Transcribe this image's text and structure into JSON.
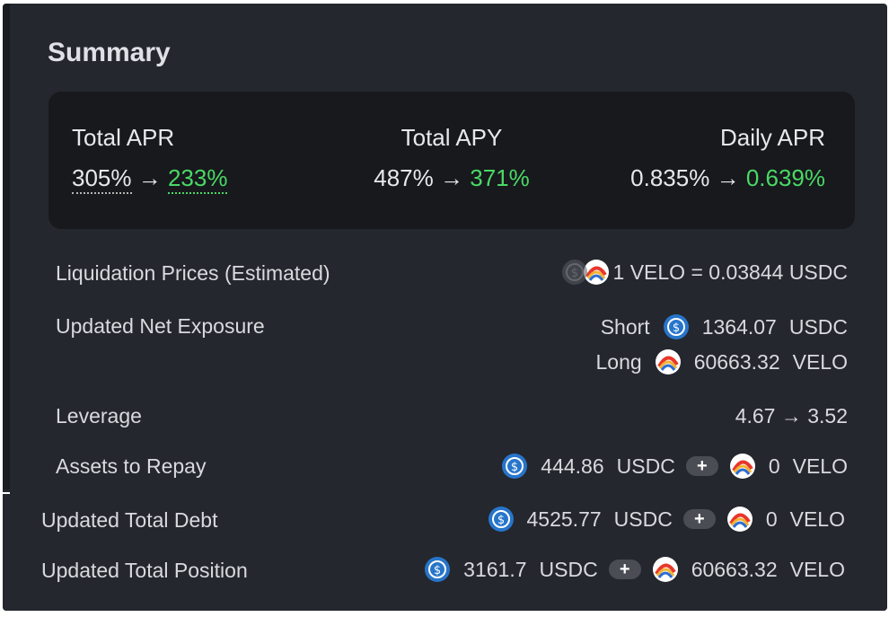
{
  "title": "Summary",
  "metrics": {
    "total_apr": {
      "label": "Total APR",
      "from": "305%",
      "to": "233%"
    },
    "total_apy": {
      "label": "Total APY",
      "from": "487%",
      "to": "371%"
    },
    "daily_apr": {
      "label": "Daily APR",
      "from": "0.835%",
      "to": "0.639%"
    },
    "arrow": "→"
  },
  "liquidation": {
    "label": "Liquidation Prices (Estimated)",
    "value": "1 VELO = 0.03844 USDC"
  },
  "net_exposure": {
    "label": "Updated Net Exposure",
    "short_label": "Short",
    "short_amount": "1364.07",
    "short_token": "USDC",
    "long_label": "Long",
    "long_amount": "60663.32",
    "long_token": "VELO"
  },
  "leverage": {
    "label": "Leverage",
    "value": "4.67 → 3.52"
  },
  "assets_to_repay": {
    "label": "Assets to Repay",
    "usdc_amount": "444.86",
    "usdc_token": "USDC",
    "velo_amount": "0",
    "velo_token": "VELO"
  },
  "total_debt": {
    "label": "Updated Total Debt",
    "usdc_amount": "4525.77",
    "usdc_token": "USDC",
    "velo_amount": "0",
    "velo_token": "VELO"
  },
  "total_position": {
    "label": "Updated Total Position",
    "usdc_amount": "3161.7",
    "usdc_token": "USDC",
    "velo_amount": "60663.32",
    "velo_token": "VELO"
  },
  "plus_symbol": "+",
  "icons": {
    "usdc": "usdc-coin-icon",
    "velo": "velo-token-icon",
    "plus": "plus-icon"
  },
  "colors": {
    "panel_bg": "#24272e",
    "box_bg": "#17191d",
    "positive": "#4ad964",
    "usdc_blue": "#2775ca"
  }
}
